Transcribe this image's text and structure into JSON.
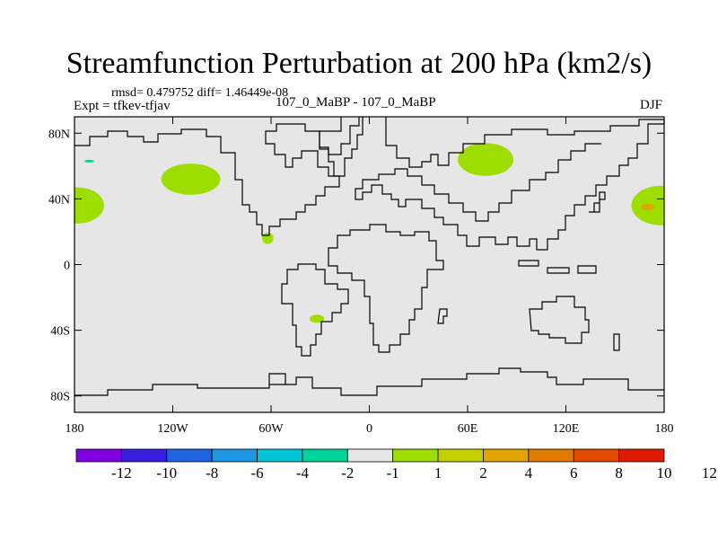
{
  "title": "Streamfunction Perturbation at 200 hPa (km2/s)",
  "stats_line": "rmsd= 0.479752 diff= 1.46449e-08",
  "expt_line": "Expt = tfkev-tfjav",
  "runs_line": "107_0_MaBP - 107_0_MaBP",
  "season": "DJF",
  "map": {
    "projection": "cylindrical-equidistant",
    "background_color": "#e6e6e6",
    "lon_range": [
      -180,
      180
    ],
    "lat_range": [
      -90,
      90
    ],
    "lat_ticks": [
      {
        "value": 80,
        "label": "80N"
      },
      {
        "value": 40,
        "label": "40N"
      },
      {
        "value": 0,
        "label": "0"
      },
      {
        "value": -40,
        "label": "40S"
      },
      {
        "value": -80,
        "label": "80S"
      }
    ],
    "lon_ticks": [
      {
        "value": -180,
        "label": "180"
      },
      {
        "value": -120,
        "label": "120W"
      },
      {
        "value": -60,
        "label": "60W"
      },
      {
        "value": 0,
        "label": "0"
      },
      {
        "value": 60,
        "label": "60E"
      },
      {
        "value": 120,
        "label": "120E"
      },
      {
        "value": 180,
        "label": "180"
      }
    ],
    "anomalies": [
      {
        "name": "north-pacific-west-anomaly",
        "lon": -178,
        "lat": 36,
        "rlon": 16,
        "rlat": 11,
        "color": "#9edd00"
      },
      {
        "name": "north-pacific-east-anomaly",
        "lon": -109,
        "lat": 52,
        "rlon": 18,
        "rlat": 9.5,
        "color": "#9edd00"
      },
      {
        "name": "gulf-of-mexico-anomaly",
        "lon": -62,
        "lat": 16,
        "rlon": 3.5,
        "rlat": 3.5,
        "color": "#9edd00"
      },
      {
        "name": "south-atlantic-anomaly",
        "lon": -32,
        "lat": -33,
        "rlon": 4.5,
        "rlat": 2.5,
        "color": "#9edd00"
      },
      {
        "name": "central-asia-anomaly",
        "lon": 71,
        "lat": 64,
        "rlon": 17,
        "rlat": 10,
        "color": "#9edd00"
      },
      {
        "name": "dateline-anomaly",
        "lon": 178,
        "lat": 36,
        "rlon": 18,
        "rlat": 12,
        "color": "#9edd00"
      },
      {
        "name": "dateline-anomaly-core",
        "lon": 170,
        "lat": 35,
        "rlon": 4,
        "rlat": 2,
        "color": "#e0a500"
      },
      {
        "name": "arctic-negative-anomaly",
        "lon": -171,
        "lat": 63,
        "rlon": 3,
        "rlat": 0.8,
        "color": "#00d39a"
      }
    ]
  },
  "colorbar": {
    "colors": [
      "#8000e0",
      "#3a1ee0",
      "#1e64e0",
      "#1e96e0",
      "#00c3d3",
      "#00d39a",
      "#e6e6e6",
      "#9edd00",
      "#c3cf00",
      "#e0a500",
      "#e07a00",
      "#e04b00",
      "#e01a00"
    ],
    "labels": [
      "-12",
      "-10",
      "-8",
      "-6",
      "-4",
      "-2",
      "-1",
      "1",
      "2",
      "4",
      "6",
      "8",
      "10",
      "12"
    ]
  }
}
